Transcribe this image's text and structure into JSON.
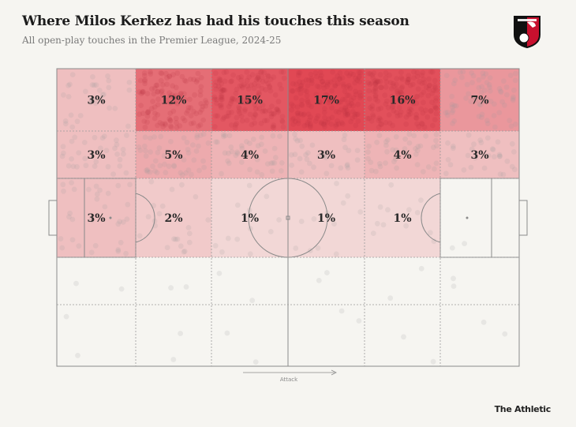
{
  "header": {
    "title": "Where Milos Kerkez has had his touches this season",
    "subtitle": "All open-play touches in the Premier League, 2024-25"
  },
  "crest": {
    "icon": "afc-bournemouth-crest",
    "colors": [
      "#c8102e",
      "#111111",
      "#ffffff"
    ]
  },
  "footer": {
    "attack_label": "Attack",
    "brand": "The Athletic"
  },
  "chart_data": {
    "type": "heatmap",
    "title": "Where Milos Kerkez has had his touches this season",
    "subtitle": "All open-play touches in the Premier League, 2024-25",
    "attack_direction": "right",
    "zone_columns": 6,
    "zone_rows": 5,
    "color_scale": {
      "low": "#f6f5f1",
      "high": "#e14a56"
    },
    "zones": [
      {
        "row": 0,
        "col": 0,
        "value": 3,
        "label": "3%"
      },
      {
        "row": 0,
        "col": 1,
        "value": 12,
        "label": "12%"
      },
      {
        "row": 0,
        "col": 2,
        "value": 15,
        "label": "15%"
      },
      {
        "row": 0,
        "col": 3,
        "value": 17,
        "label": "17%"
      },
      {
        "row": 0,
        "col": 4,
        "value": 16,
        "label": "16%"
      },
      {
        "row": 0,
        "col": 5,
        "value": 7,
        "label": "7%"
      },
      {
        "row": 1,
        "col": 0,
        "value": 3,
        "label": "3%"
      },
      {
        "row": 1,
        "col": 1,
        "value": 5,
        "label": "5%"
      },
      {
        "row": 1,
        "col": 2,
        "value": 4,
        "label": "4%"
      },
      {
        "row": 1,
        "col": 3,
        "value": 3,
        "label": "3%"
      },
      {
        "row": 1,
        "col": 4,
        "value": 4,
        "label": "4%"
      },
      {
        "row": 1,
        "col": 5,
        "value": 3,
        "label": "3%"
      },
      {
        "row": 2,
        "col": 0,
        "value": 3,
        "label": "3%"
      },
      {
        "row": 2,
        "col": 1,
        "value": 2,
        "label": "2%"
      },
      {
        "row": 2,
        "col": 2,
        "value": 1,
        "label": "1%"
      },
      {
        "row": 2,
        "col": 3,
        "value": 1,
        "label": "1%"
      },
      {
        "row": 2,
        "col": 4,
        "value": 1,
        "label": "1%"
      },
      {
        "row": 2,
        "col": 5,
        "value": 0,
        "label": ""
      },
      {
        "row": 3,
        "col": 0,
        "value": 0,
        "label": ""
      },
      {
        "row": 3,
        "col": 1,
        "value": 0,
        "label": ""
      },
      {
        "row": 3,
        "col": 2,
        "value": 0,
        "label": ""
      },
      {
        "row": 3,
        "col": 3,
        "value": 0,
        "label": ""
      },
      {
        "row": 3,
        "col": 4,
        "value": 0,
        "label": ""
      },
      {
        "row": 3,
        "col": 5,
        "value": 0,
        "label": ""
      },
      {
        "row": 4,
        "col": 0,
        "value": 0,
        "label": ""
      },
      {
        "row": 4,
        "col": 1,
        "value": 0,
        "label": ""
      },
      {
        "row": 4,
        "col": 2,
        "value": 0,
        "label": ""
      },
      {
        "row": 4,
        "col": 3,
        "value": 0,
        "label": ""
      },
      {
        "row": 4,
        "col": 4,
        "value": 0,
        "label": ""
      },
      {
        "row": 4,
        "col": 5,
        "value": 0,
        "label": ""
      }
    ]
  }
}
